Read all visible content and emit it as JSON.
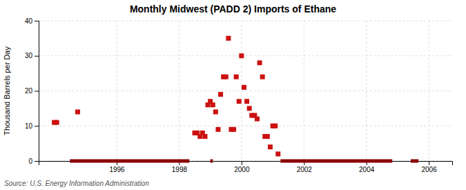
{
  "chart_data": {
    "type": "scatter",
    "title": "Monthly Midwest (PADD 2) Imports of Ethane",
    "ylabel": "Thousand Barrels per Day",
    "source": "Source: U.S. Energy Information Administration",
    "xlim": [
      1993.5,
      2006.75
    ],
    "ylim": [
      0,
      40
    ],
    "xticks": [
      1996,
      1998,
      2000,
      2002,
      2004,
      2006
    ],
    "yticks": [
      0,
      10,
      20,
      30,
      40
    ],
    "grid": true,
    "series": [
      {
        "type": "scatter",
        "marker": "square",
        "color": "#cc1111",
        "x": [
          1994.0,
          1994.08,
          1994.75,
          1998.5,
          1998.58,
          1998.67,
          1998.75,
          1998.83,
          1998.92,
          1999.0,
          1999.08,
          1999.17,
          1999.25,
          1999.33,
          1999.42,
          1999.5,
          1999.58,
          1999.67,
          1999.75,
          1999.83,
          1999.92,
          2000.0,
          2000.08,
          2000.17,
          2000.25,
          2000.33,
          2000.42,
          2000.5,
          2000.58,
          2000.67,
          2000.75,
          2000.83,
          2000.92,
          2001.0,
          2001.08,
          2001.17
        ],
        "values": [
          11,
          11,
          14,
          8,
          8,
          7,
          8,
          7,
          16,
          17,
          16,
          14,
          9,
          19,
          24,
          24,
          35,
          9,
          9,
          24,
          17,
          30,
          21,
          17,
          15,
          13,
          13,
          12,
          28,
          24,
          7,
          7,
          4,
          10,
          10,
          2
        ]
      },
      {
        "type": "line",
        "color": "#8b0000",
        "x": [
          1994.5,
          1998.33,
          null,
          1999.0,
          1999.08,
          null,
          2001.25,
          2004.83,
          null,
          2005.42,
          2005.67
        ],
        "values": [
          0,
          0,
          null,
          0,
          0,
          null,
          0,
          0,
          null,
          0,
          0
        ]
      }
    ]
  }
}
